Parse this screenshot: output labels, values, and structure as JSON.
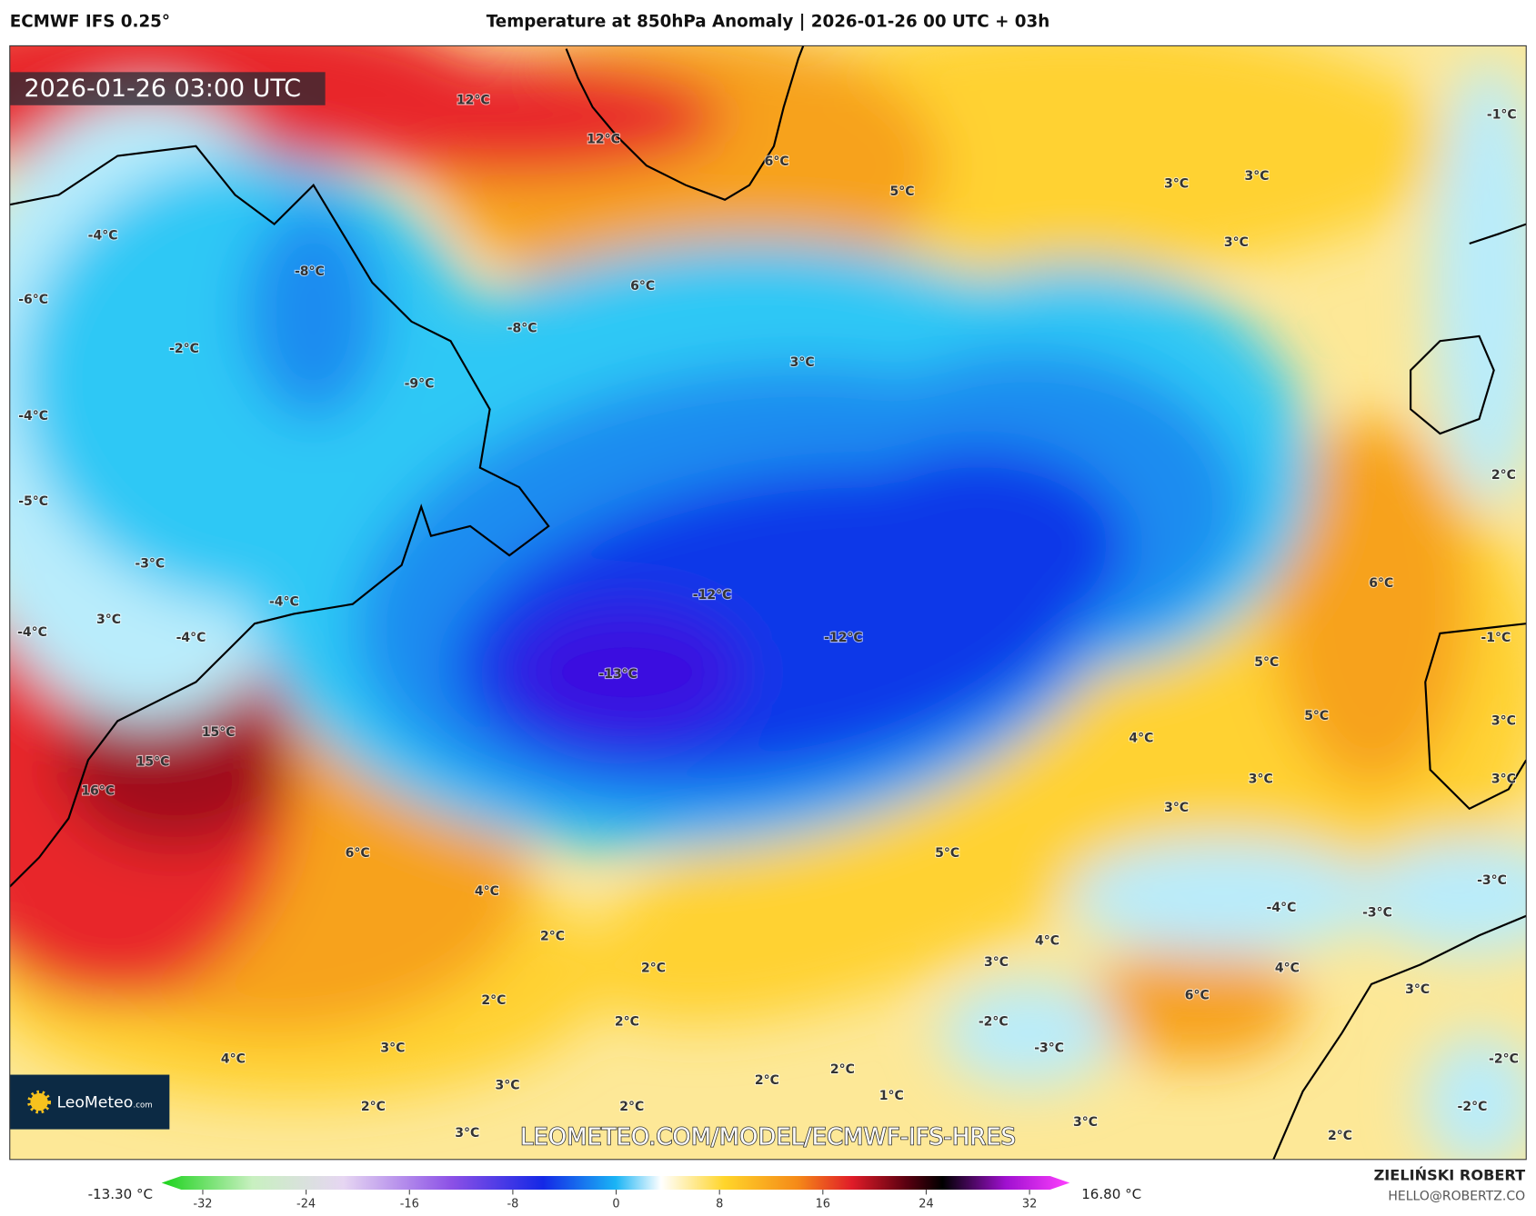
{
  "header": {
    "model": "ECMWF IFS 0.25°",
    "title": "Temperature at 850hPa Anomaly | 2026-01-26 00 UTC + 03h"
  },
  "map": {
    "timestamp": "2026-01-26 03:00 UTC",
    "contour_labels": [
      "12°C",
      "12°C",
      "6°C",
      "5°C",
      "3°C",
      "3°C",
      "3°C",
      "-1°C",
      "-4°C",
      "-8°C",
      "-6°C",
      "6°C",
      "-8°C",
      "-2°C",
      "3°C",
      "-9°C",
      "-4°C",
      "-5°C",
      "2°C",
      "-3°C",
      "-12°C",
      "6°C",
      "-4°C",
      "3°C",
      "-4°C",
      "-4°C",
      "-12°C",
      "-1°C",
      "-13°C",
      "5°C",
      "5°C",
      "3°C",
      "15°C",
      "4°C",
      "15°C",
      "3°C",
      "3°C",
      "16°C",
      "3°C",
      "6°C",
      "5°C",
      "-3°C",
      "4°C",
      "-4°C",
      "-3°C",
      "2°C",
      "4°C",
      "3°C",
      "2°C",
      "4°C",
      "3°C",
      "6°C",
      "2°C",
      "2°C",
      "-2°C",
      "3°C",
      "-3°C",
      "4°C",
      "-2°C",
      "2°C",
      "2°C",
      "3°C",
      "1°C",
      "2°C",
      "2°C",
      "-2°C",
      "3°C",
      "3°C",
      "2°C"
    ],
    "watermark": "LEOMETEO.COM/MODEL/ECMWF-IFS-HRES",
    "logo": "LeoMeteo",
    "logo_suffix": ".com"
  },
  "colorbar": {
    "min_label": "-13.30 °C",
    "max_label": "16.80 °C",
    "ticks": [
      -32,
      -24,
      -16,
      -8,
      0,
      8,
      16,
      24,
      32
    ]
  },
  "footer": {
    "author": "ZIELIŃSKI ROBERT",
    "email": "HELLO@ROBERTZ.CO"
  }
}
